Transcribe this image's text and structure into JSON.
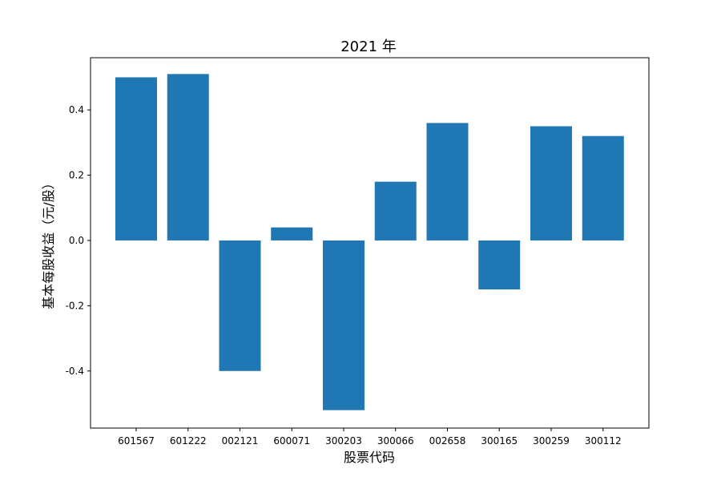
{
  "chart_data": {
    "type": "bar",
    "title": "2021 年",
    "xlabel": "股票代码",
    "ylabel": "基本每股收益（元/股）",
    "categories": [
      "601567",
      "601222",
      "002121",
      "600071",
      "300203",
      "300066",
      "002658",
      "300165",
      "300259",
      "300112"
    ],
    "values": [
      0.5,
      0.51,
      -0.4,
      0.04,
      -0.52,
      0.18,
      0.36,
      -0.15,
      0.35,
      0.32
    ],
    "ylim": [
      -0.575,
      0.56
    ],
    "yticks": [
      -0.4,
      -0.2,
      0.0,
      0.2,
      0.4
    ],
    "ytick_labels": [
      "-0.4",
      "-0.2",
      "0.0",
      "0.2",
      "0.4"
    ],
    "grid": false,
    "bar_color": "#1f77b4"
  }
}
